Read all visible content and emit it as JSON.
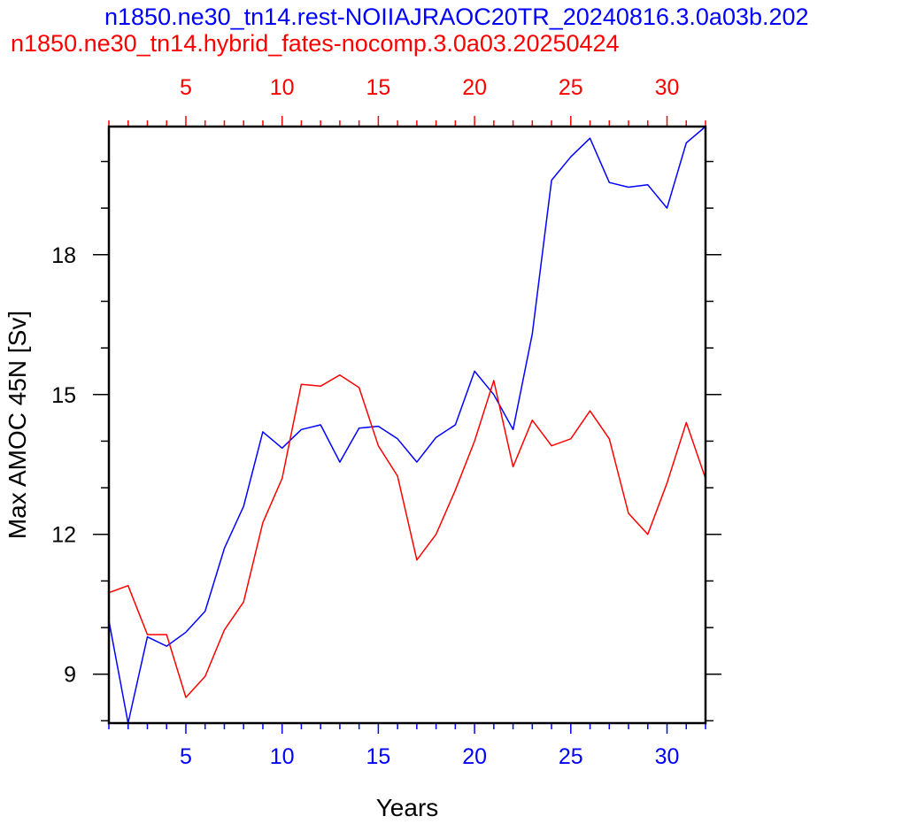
{
  "colors": {
    "blue_series": "#0000ff",
    "red_series": "#ff0000",
    "axis": "#000000",
    "background": "#ffffff"
  },
  "chart_data": {
    "type": "line",
    "title_line_1": "n1850.ne30_tn14.rest-NOIIAJRAOC20TR_20240816.3.0a03b.202",
    "title_line_2": "n1850.ne30_tn14.hybrid_fates-nocomp.3.0a03.20250424",
    "xlabel": "Years",
    "ylabel": "Max AMOC 45N [Sv]",
    "xlim": [
      1,
      32
    ],
    "ylim": [
      7.95,
      20.75
    ],
    "x_ticks": [
      5,
      10,
      15,
      20,
      25,
      30
    ],
    "x_tick_labels": [
      "5",
      "10",
      "15",
      "20",
      "25",
      "30"
    ],
    "y_ticks": [
      9,
      12,
      15,
      18
    ],
    "y_tick_labels": [
      "9",
      "12",
      "15",
      "18"
    ],
    "grid": false,
    "series": [
      {
        "name": "n1850.ne30_tn14.rest-NOIIAJRAOC20TR_20240816.3.0a03b.202",
        "color": "#0000ff",
        "x_axis": "bottom",
        "x": [
          1,
          2,
          3,
          4,
          5,
          6,
          7,
          8,
          9,
          10,
          11,
          12,
          13,
          14,
          15,
          16,
          17,
          18,
          19,
          20,
          21,
          22,
          23,
          24,
          25,
          26,
          27,
          28,
          29,
          30,
          31,
          32
        ],
        "values": [
          10.15,
          7.95,
          9.8,
          9.6,
          9.9,
          10.35,
          11.7,
          12.6,
          14.2,
          13.85,
          14.25,
          14.35,
          13.55,
          14.28,
          14.32,
          14.05,
          13.55,
          14.08,
          14.35,
          15.5,
          15.0,
          14.25,
          16.3,
          19.6,
          20.1,
          20.5,
          19.55,
          19.45,
          19.5,
          19.0,
          20.4,
          20.75
        ]
      },
      {
        "name": "n1850.ne30_tn14.hybrid_fates-nocomp.3.0a03.20250424",
        "color": "#ff0000",
        "x_axis": "top",
        "x": [
          1,
          2,
          3,
          4,
          5,
          6,
          7,
          8,
          9,
          10,
          11,
          12,
          13,
          14,
          15,
          16,
          17,
          18,
          19,
          20,
          21,
          22,
          23,
          24,
          25,
          26,
          27,
          28,
          29,
          30,
          31,
          32
        ],
        "values": [
          10.75,
          10.9,
          9.85,
          9.85,
          8.5,
          8.95,
          9.95,
          10.55,
          12.25,
          13.2,
          15.22,
          15.18,
          15.42,
          15.15,
          13.9,
          13.25,
          11.45,
          12.0,
          12.95,
          14.0,
          15.3,
          13.45,
          14.45,
          13.9,
          14.05,
          14.65,
          14.05,
          12.45,
          12.0,
          13.1,
          14.4,
          13.2
        ]
      }
    ]
  }
}
